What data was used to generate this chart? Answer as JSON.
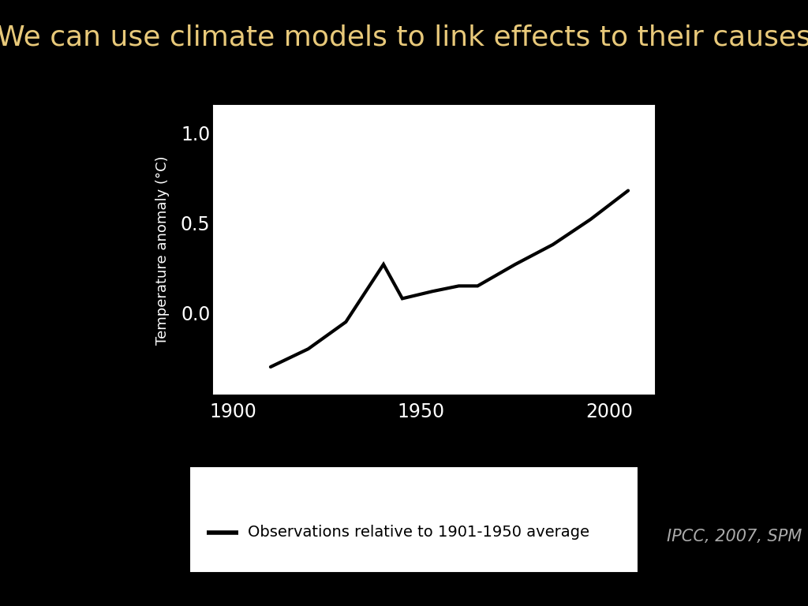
{
  "title": "We can use climate models to link effects to their causes",
  "title_color": "#E8C97A",
  "title_fontsize": 26,
  "background_color": "#000000",
  "plot_bg_color": "#ffffff",
  "ylabel": "Temperature anomaly (°C)",
  "ylabel_color": "#ffffff",
  "ylabel_fontsize": 13,
  "xtick_labels": [
    "1900",
    "1950",
    "2000"
  ],
  "xtick_positions": [
    1900,
    1950,
    2000
  ],
  "ytick_labels": [
    "0.0",
    "0.5",
    "1.0"
  ],
  "ytick_positions": [
    0.0,
    0.5,
    1.0
  ],
  "xlim": [
    1895,
    2012
  ],
  "ylim": [
    -0.45,
    1.15
  ],
  "line_color": "#000000",
  "line_width": 3.0,
  "x_data": [
    1910,
    1920,
    1930,
    1940,
    1945,
    1953,
    1960,
    1965,
    1975,
    1985,
    1995,
    2000,
    2005
  ],
  "y_data": [
    -0.3,
    -0.2,
    -0.05,
    0.27,
    0.08,
    0.12,
    0.15,
    0.15,
    0.27,
    0.38,
    0.52,
    0.6,
    0.68
  ],
  "legend_text": "Observations relative to 1901-1950 average",
  "legend_line_color": "#000000",
  "citation_text": "IPCC, 2007, SPM",
  "citation_color": "#aaaaaa",
  "citation_fontsize": 15,
  "tick_color": "#ffffff",
  "spine_color": "#ffffff"
}
